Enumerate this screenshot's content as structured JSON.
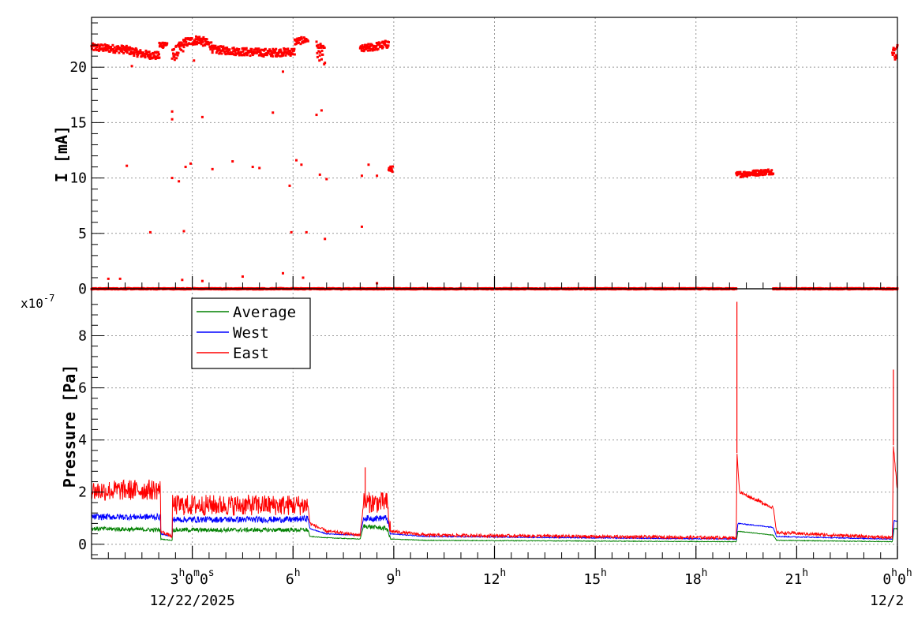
{
  "chart_data": [
    {
      "type": "scatter",
      "panel": "current",
      "ylabel": "I [mA]",
      "ylim": [
        0,
        24.5
      ],
      "yticks": [
        0,
        5,
        10,
        15,
        20
      ],
      "xlim_hours": [
        0,
        24
      ],
      "grid": true,
      "series": [
        {
          "color": "#ff0000",
          "marker": "square",
          "bands": [
            {
              "x0": 0.0,
              "x1": 2.02,
              "y": [
                [
                  0.0,
                  21.8
                ],
                [
                  0.5,
                  21.7
                ],
                [
                  1.0,
                  21.6
                ],
                [
                  1.5,
                  21.2
                ],
                [
                  2.02,
                  21.0
                ]
              ],
              "spread": 0.35
            },
            {
              "x0": 2.02,
              "x1": 2.25,
              "y": [
                [
                  2.02,
                  22.0
                ],
                [
                  2.25,
                  22.1
                ]
              ],
              "spread": 0.3
            },
            {
              "x0": 2.4,
              "x1": 2.75,
              "y": [
                [
                  2.4,
                  21.0
                ],
                [
                  2.75,
                  22.0
                ]
              ],
              "spread": 0.6
            },
            {
              "x0": 2.75,
              "x1": 3.6,
              "y": [
                [
                  2.75,
                  22.2
                ],
                [
                  3.2,
                  22.5
                ],
                [
                  3.6,
                  21.9
                ]
              ],
              "spread": 0.4
            },
            {
              "x0": 3.6,
              "x1": 6.05,
              "y": [
                [
                  3.6,
                  21.6
                ],
                [
                  4.5,
                  21.4
                ],
                [
                  5.3,
                  21.3
                ],
                [
                  6.05,
                  21.4
                ]
              ],
              "spread": 0.35
            },
            {
              "x0": 6.05,
              "x1": 6.45,
              "y": [
                [
                  6.05,
                  22.3
                ],
                [
                  6.45,
                  22.5
                ]
              ],
              "spread": 0.3
            },
            {
              "x0": 6.7,
              "x1": 6.95,
              "y": [
                [
                  6.7,
                  21.6
                ],
                [
                  6.95,
                  21.0
                ]
              ],
              "spread": 0.8
            },
            {
              "x0": 8.0,
              "x1": 8.85,
              "y": [
                [
                  8.0,
                  21.6
                ],
                [
                  8.85,
                  22.1
                ]
              ],
              "spread": 0.35
            },
            {
              "x0": 8.85,
              "x1": 8.97,
              "y": [
                [
                  8.85,
                  10.8
                ],
                [
                  8.97,
                  10.8
                ]
              ],
              "spread": 0.25
            },
            {
              "x0": 19.2,
              "x1": 20.3,
              "y": [
                [
                  19.2,
                  10.3
                ],
                [
                  20.3,
                  10.6
                ]
              ],
              "spread": 0.25
            },
            {
              "x0": 23.85,
              "x1": 24.0,
              "y": [
                [
                  23.85,
                  21.2
                ],
                [
                  24.0,
                  21.4
                ]
              ],
              "spread": 0.7
            },
            {
              "x0": 0.0,
              "x1": 19.2,
              "y": [
                [
                  0.0,
                  0.0
                ],
                [
                  19.2,
                  0.0
                ]
              ],
              "spread": 0.05
            },
            {
              "x0": 20.3,
              "x1": 24.0,
              "y": [
                [
                  20.3,
                  0.0
                ],
                [
                  24.0,
                  0.0
                ]
              ],
              "spread": 0.05
            }
          ],
          "outliers": [
            [
              1.05,
              11.1
            ],
            [
              1.75,
              5.1
            ],
            [
              2.4,
              16.0
            ],
            [
              2.4,
              15.3
            ],
            [
              2.4,
              10.0
            ],
            [
              2.6,
              9.7
            ],
            [
              2.75,
              5.2
            ],
            [
              2.8,
              11.0
            ],
            [
              2.95,
              11.3
            ],
            [
              3.3,
              15.5
            ],
            [
              3.6,
              10.8
            ],
            [
              4.2,
              11.5
            ],
            [
              4.8,
              11.0
            ],
            [
              5.0,
              10.9
            ],
            [
              5.4,
              15.9
            ],
            [
              5.7,
              19.6
            ],
            [
              5.9,
              9.3
            ],
            [
              5.95,
              5.1
            ],
            [
              6.1,
              11.6
            ],
            [
              6.25,
              11.2
            ],
            [
              6.4,
              5.1
            ],
            [
              6.7,
              15.7
            ],
            [
              6.85,
              16.1
            ],
            [
              6.8,
              10.3
            ],
            [
              6.95,
              4.5
            ],
            [
              7.0,
              9.9
            ],
            [
              8.05,
              10.2
            ],
            [
              8.05,
              5.6
            ],
            [
              8.25,
              11.2
            ],
            [
              8.5,
              10.2
            ],
            [
              1.2,
              20.1
            ],
            [
              3.05,
              20.6
            ],
            [
              0.5,
              0.9
            ],
            [
              0.85,
              0.9
            ],
            [
              2.7,
              0.8
            ],
            [
              3.3,
              0.7
            ],
            [
              4.5,
              1.1
            ],
            [
              5.7,
              1.4
            ],
            [
              6.3,
              1.0
            ],
            [
              8.5,
              0.5
            ]
          ]
        }
      ]
    },
    {
      "type": "line",
      "panel": "pressure",
      "ylabel": "Pressure [Pa]",
      "exponent_label": "x10",
      "exponent": "-7",
      "ylim": [
        -0.55,
        9.8
      ],
      "yticks": [
        0,
        2,
        4,
        6,
        8
      ],
      "xlim_hours": [
        0,
        24
      ],
      "grid": true,
      "legend_position": "top-left",
      "series": [
        {
          "name": "Average",
          "color": "#008000",
          "segments": [
            [
              0,
              0.6
            ],
            [
              2.05,
              0.55
            ],
            [
              2.06,
              0.2
            ],
            [
              2.4,
              0.15
            ],
            [
              2.41,
              0.55
            ],
            [
              6.05,
              0.55
            ],
            [
              6.45,
              0.55
            ],
            [
              6.5,
              0.3
            ],
            [
              7.0,
              0.25
            ],
            [
              8.0,
              0.2
            ],
            [
              8.1,
              0.7
            ],
            [
              8.8,
              0.6
            ],
            [
              8.9,
              0.2
            ],
            [
              10.0,
              0.15
            ],
            [
              19.2,
              0.1
            ],
            [
              19.25,
              0.5
            ],
            [
              20.3,
              0.35
            ],
            [
              20.4,
              0.15
            ],
            [
              23.85,
              0.1
            ],
            [
              23.9,
              0.6
            ],
            [
              24.0,
              0.6
            ]
          ],
          "noise": 0.08
        },
        {
          "name": "West",
          "color": "#0000ff",
          "segments": [
            [
              0,
              1.05
            ],
            [
              2.05,
              1.05
            ],
            [
              2.06,
              0.4
            ],
            [
              2.4,
              0.3
            ],
            [
              2.41,
              0.95
            ],
            [
              6.05,
              0.95
            ],
            [
              6.45,
              1.0
            ],
            [
              6.5,
              0.6
            ],
            [
              7.0,
              0.4
            ],
            [
              8.0,
              0.35
            ],
            [
              8.1,
              1.0
            ],
            [
              8.8,
              1.0
            ],
            [
              8.9,
              0.4
            ],
            [
              10.0,
              0.3
            ],
            [
              19.2,
              0.2
            ],
            [
              19.25,
              0.8
            ],
            [
              20.3,
              0.65
            ],
            [
              20.4,
              0.3
            ],
            [
              23.85,
              0.2
            ],
            [
              23.9,
              0.9
            ],
            [
              24.0,
              0.9
            ]
          ],
          "noise": 0.12
        },
        {
          "name": "East",
          "color": "#ff0000",
          "segments": [
            [
              0,
              2.05
            ],
            [
              2.05,
              2.1
            ],
            [
              2.06,
              0.5
            ],
            [
              2.4,
              0.3
            ],
            [
              2.41,
              1.5
            ],
            [
              6.05,
              1.5
            ],
            [
              6.45,
              1.5
            ],
            [
              6.5,
              0.8
            ],
            [
              7.0,
              0.5
            ],
            [
              8.0,
              0.35
            ],
            [
              8.1,
              1.6
            ],
            [
              8.8,
              1.6
            ],
            [
              8.9,
              0.5
            ],
            [
              10.0,
              0.35
            ],
            [
              19.2,
              0.25
            ],
            [
              19.22,
              3.5
            ],
            [
              19.3,
              2.0
            ],
            [
              20.3,
              1.4
            ],
            [
              20.4,
              0.45
            ],
            [
              23.85,
              0.25
            ],
            [
              23.88,
              3.8
            ],
            [
              24.0,
              2.0
            ]
          ],
          "noise": 0.4,
          "spikes": [
            [
              8.15,
              2.95
            ],
            [
              19.22,
              9.3
            ],
            [
              23.88,
              6.7
            ]
          ]
        }
      ]
    }
  ],
  "x_axis": {
    "major_ticks": [
      {
        "hour": 3,
        "main": "3",
        "sup1": "h",
        "mid": "0",
        "sup2": "m",
        "mid2": "0",
        "sup3": "s"
      },
      {
        "hour": 6,
        "main": "6",
        "sup1": "h"
      },
      {
        "hour": 9,
        "main": "9",
        "sup1": "h"
      },
      {
        "hour": 12,
        "main": "12",
        "sup1": "h"
      },
      {
        "hour": 15,
        "main": "15",
        "sup1": "h"
      },
      {
        "hour": 18,
        "main": "18",
        "sup1": "h"
      },
      {
        "hour": 21,
        "main": "21",
        "sup1": "h"
      },
      {
        "hour": 24,
        "main": "0",
        "sup1": "h",
        "mid": "0",
        "sup2": "h"
      }
    ],
    "date_labels": [
      {
        "hour": 3,
        "text": "12/22/2025"
      },
      {
        "hour": 24,
        "text": "12/2"
      }
    ]
  },
  "legend": {
    "items": [
      {
        "label": "Average",
        "color": "#008000"
      },
      {
        "label": "West",
        "color": "#0000ff"
      },
      {
        "label": "East",
        "color": "#ff0000"
      }
    ]
  }
}
